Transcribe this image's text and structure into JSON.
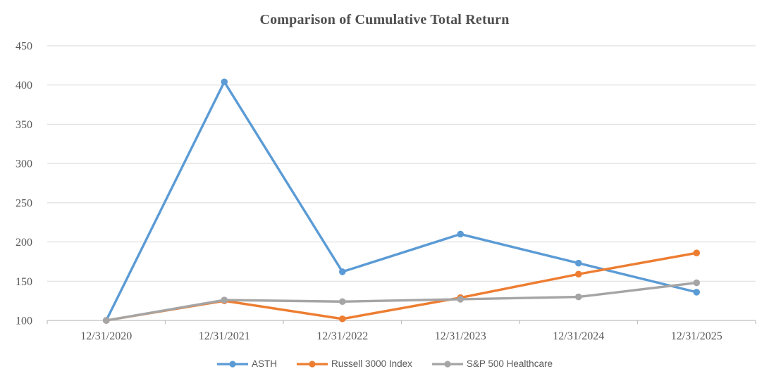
{
  "chart_data": {
    "type": "line",
    "title": "Comparison of Cumulative Total Return",
    "categories": [
      "12/31/2020",
      "12/31/2021",
      "12/31/2022",
      "12/31/2023",
      "12/31/2024",
      "12/31/2025"
    ],
    "series": [
      {
        "name": "ASTH",
        "color": "#5B9BD5",
        "values": [
          100,
          404,
          162,
          210,
          173,
          136
        ]
      },
      {
        "name": "Russell 3000 Index",
        "color": "#ED7D31",
        "values": [
          100,
          125,
          102,
          129,
          159,
          186
        ]
      },
      {
        "name": "S&P 500 Healthcare",
        "color": "#A5A5A5",
        "values": [
          100,
          126,
          124,
          127,
          130,
          148
        ]
      }
    ],
    "ylim": [
      100,
      450
    ],
    "ytick_step": 50,
    "yticks": [
      100,
      150,
      200,
      250,
      300,
      350,
      400,
      450
    ],
    "grid": true,
    "legend_position": "bottom",
    "marker": "circle"
  },
  "colors": {
    "background": "#FFFFFF",
    "title_text": "#4F4F4F",
    "tick_text": "#595959",
    "gridline": "#D9D9D9",
    "axis_line": "#BFBFBF"
  }
}
